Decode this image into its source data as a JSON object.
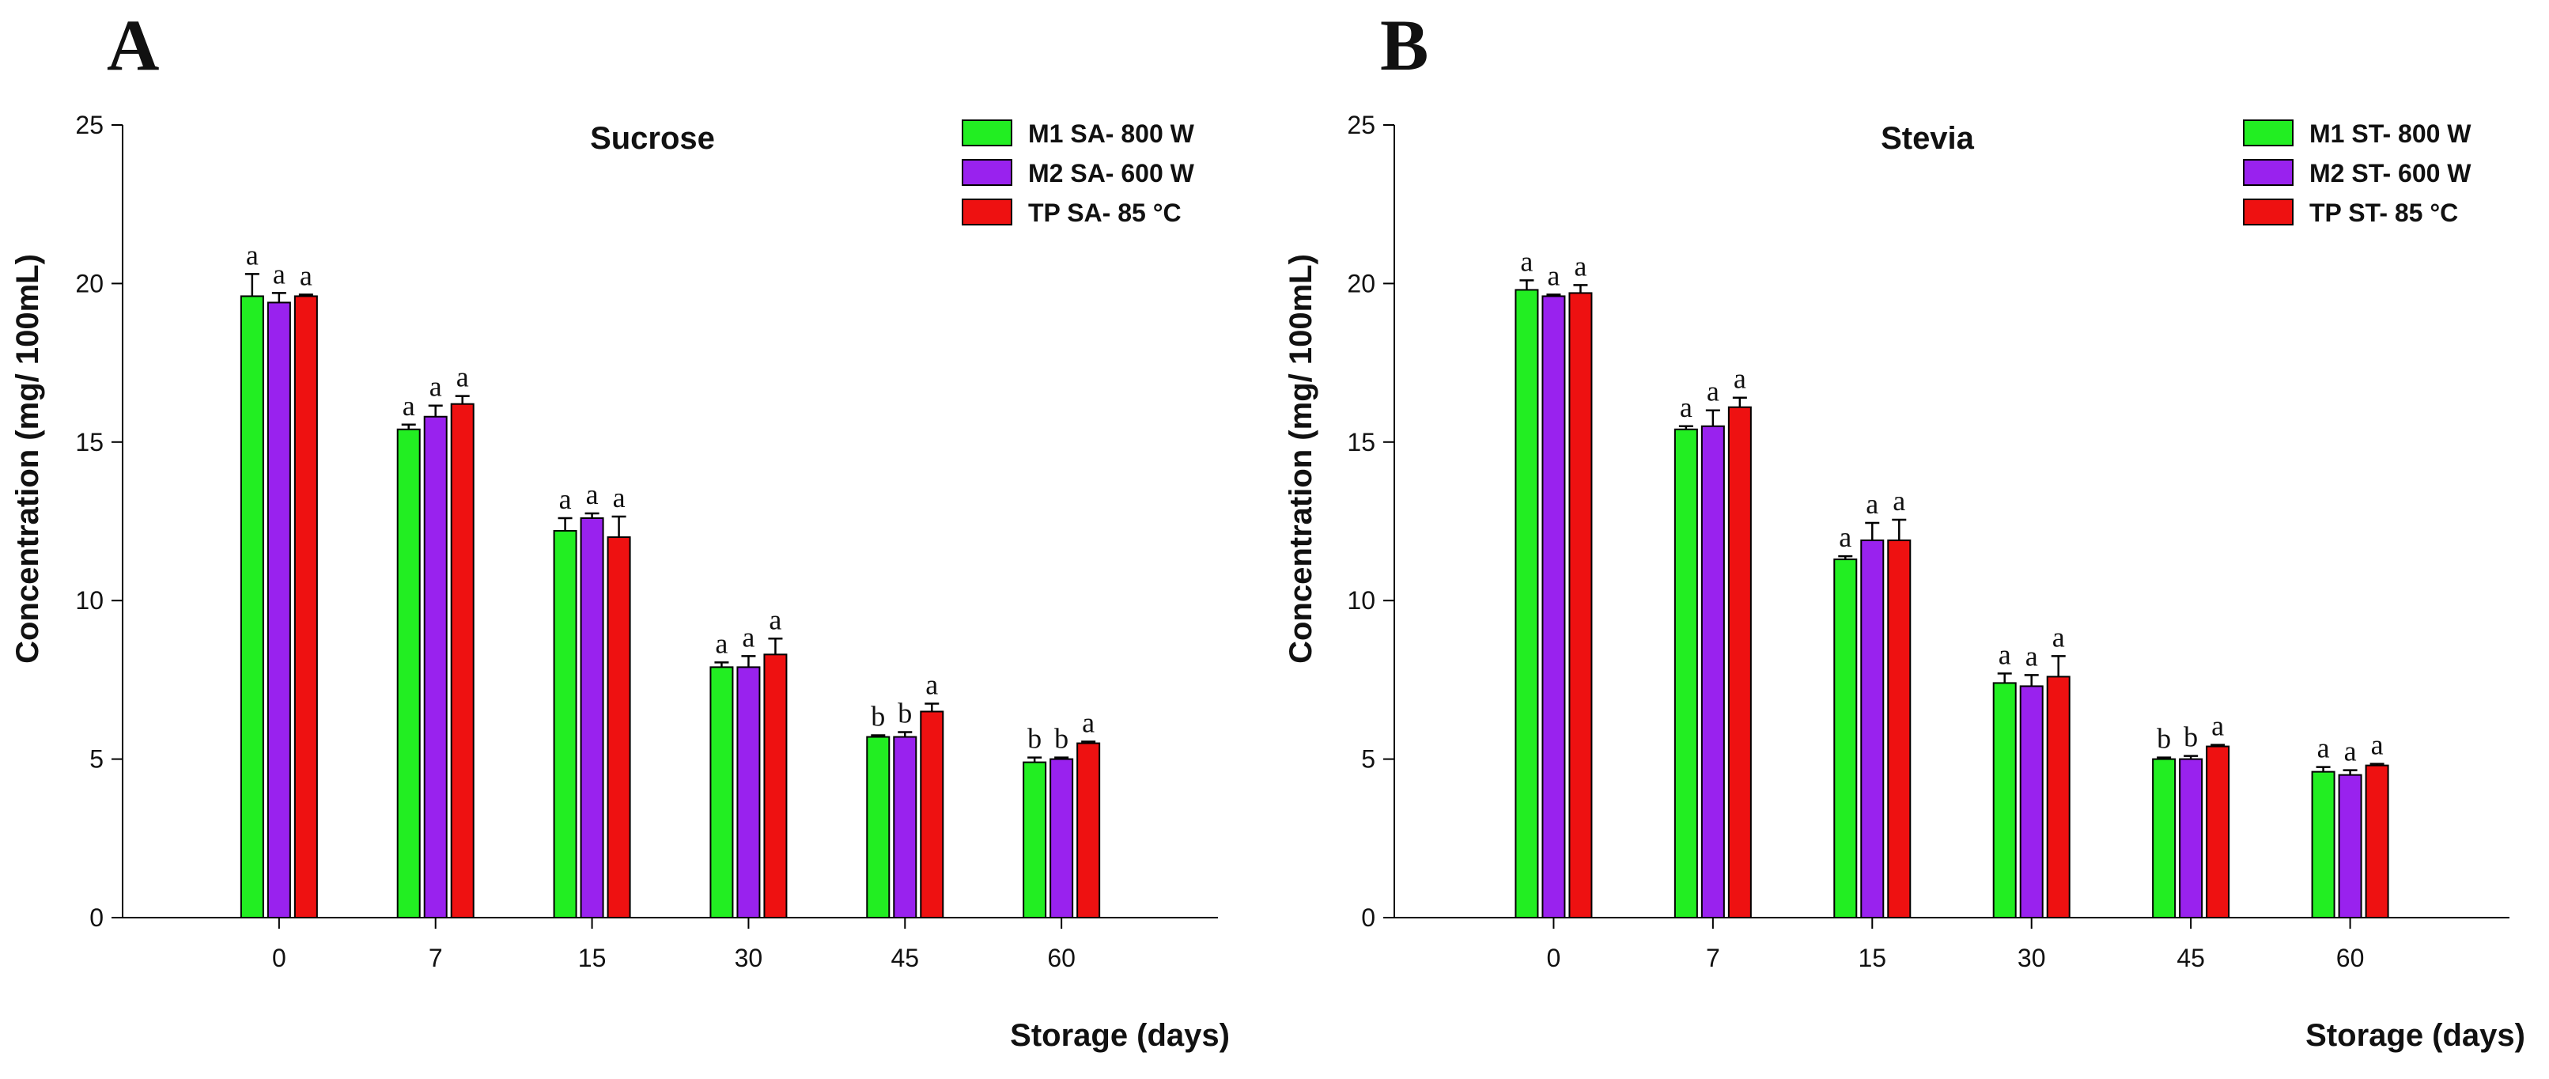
{
  "colors": {
    "series": [
      "#22ee22",
      "#9922ee",
      "#ee1111"
    ],
    "axis": "#000000",
    "error_bar": "#000000"
  },
  "chart_data": [
    {
      "panel": "A",
      "type": "bar",
      "title": "Sucrose",
      "xlabel": "Storage (days)",
      "ylabel": "Concentration (mg/ 100mL)",
      "ylim": [
        0,
        25
      ],
      "yticks": [
        0,
        5,
        10,
        15,
        20,
        25
      ],
      "categories": [
        "0",
        "7",
        "15",
        "30",
        "45",
        "60"
      ],
      "grid": false,
      "legend_position": "top-right",
      "series": [
        {
          "name": "M1 SA- 800 W",
          "values": [
            19.6,
            15.4,
            12.2,
            7.9,
            5.7,
            4.9
          ],
          "errors": [
            0.7,
            0.15,
            0.4,
            0.15,
            0.05,
            0.15
          ],
          "labels": [
            "a",
            "a",
            "a",
            "a",
            "b",
            "b"
          ]
        },
        {
          "name": "M2 SA- 600 W",
          "values": [
            19.4,
            15.8,
            12.6,
            7.9,
            5.7,
            5.0
          ],
          "errors": [
            0.3,
            0.35,
            0.15,
            0.35,
            0.15,
            0.05
          ],
          "labels": [
            "a",
            "a",
            "a",
            "a",
            "b",
            "b"
          ]
        },
        {
          "name": "TP SA- 85 °C",
          "values": [
            19.6,
            16.2,
            12.0,
            8.3,
            6.5,
            5.5
          ],
          "errors": [
            0.05,
            0.25,
            0.65,
            0.5,
            0.25,
            0.05
          ],
          "labels": [
            "a",
            "a",
            "a",
            "a",
            "a",
            "a"
          ]
        }
      ]
    },
    {
      "panel": "B",
      "type": "bar",
      "title": "Stevia",
      "xlabel": "Storage (days)",
      "ylabel": "Concentration (mg/ 100mL)",
      "ylim": [
        0,
        25
      ],
      "yticks": [
        0,
        5,
        10,
        15,
        20,
        25
      ],
      "categories": [
        "0",
        "7",
        "15",
        "30",
        "45",
        "60"
      ],
      "grid": false,
      "legend_position": "top-right",
      "series": [
        {
          "name": "M1 ST- 800 W",
          "values": [
            19.8,
            15.4,
            11.3,
            7.4,
            5.0,
            4.6
          ],
          "errors": [
            0.3,
            0.1,
            0.1,
            0.3,
            0.05,
            0.15
          ],
          "labels": [
            "a",
            "a",
            "a",
            "a",
            "b",
            "a"
          ]
        },
        {
          "name": "M2 ST- 600 W",
          "values": [
            19.6,
            15.5,
            11.9,
            7.3,
            5.0,
            4.5
          ],
          "errors": [
            0.05,
            0.5,
            0.55,
            0.35,
            0.1,
            0.15
          ],
          "labels": [
            "a",
            "a",
            "a",
            "a",
            "b",
            "a"
          ]
        },
        {
          "name": "TP ST- 85 °C",
          "values": [
            19.7,
            16.1,
            11.9,
            7.6,
            5.4,
            4.8
          ],
          "errors": [
            0.25,
            0.3,
            0.65,
            0.65,
            0.05,
            0.05
          ],
          "labels": [
            "a",
            "a",
            "a",
            "a",
            "a",
            "a"
          ]
        }
      ]
    }
  ]
}
